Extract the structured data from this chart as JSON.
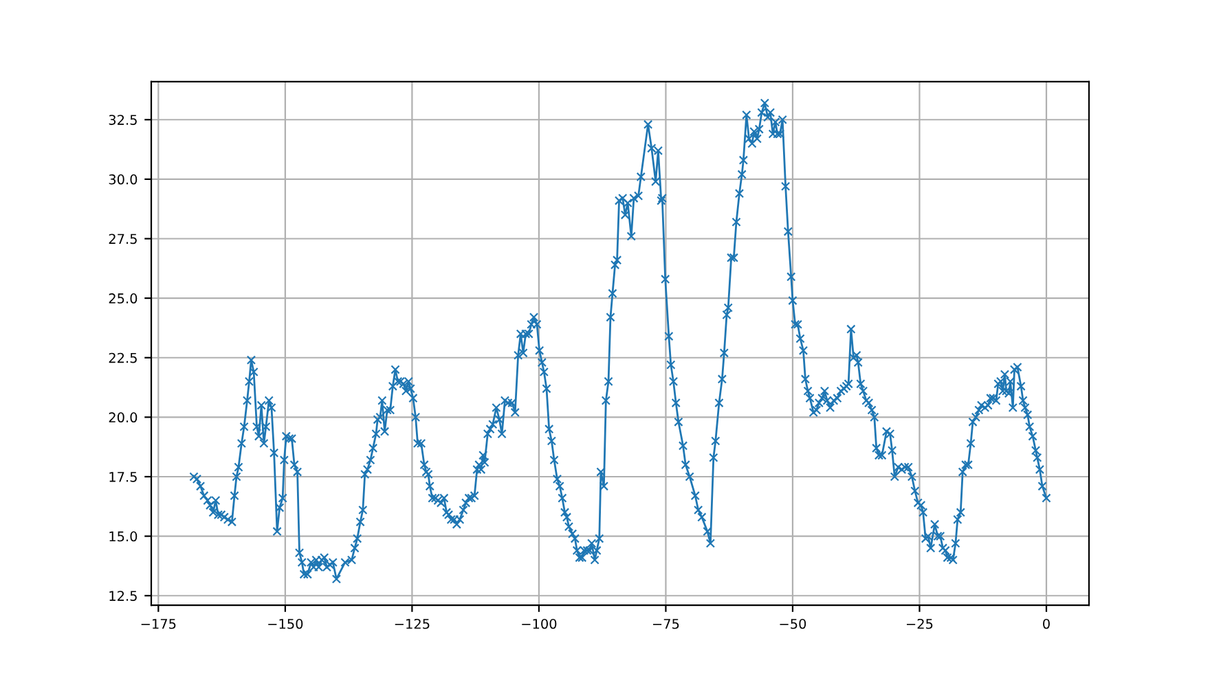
{
  "chart_data": {
    "type": "line",
    "xlim": [
      -176.4,
      8.4
    ],
    "ylim": [
      12.1,
      34.1
    ],
    "xticks": [
      {
        "value": -175,
        "label": "−175"
      },
      {
        "value": -150,
        "label": "−150"
      },
      {
        "value": -125,
        "label": "−125"
      },
      {
        "value": -100,
        "label": "−100"
      },
      {
        "value": -75,
        "label": "−75"
      },
      {
        "value": -50,
        "label": "−50"
      },
      {
        "value": -25,
        "label": "−25"
      },
      0
    ],
    "yticks": [
      12.5,
      {
        "value": 15,
        "label": "15.0"
      },
      17.5,
      {
        "value": 20,
        "label": "20.0"
      },
      22.5,
      {
        "value": 25,
        "label": "25.0"
      },
      27.5,
      {
        "value": 30,
        "label": "30.0"
      },
      32.5
    ],
    "grid": true,
    "marker": "cross",
    "line_style": "solid",
    "series": [
      {
        "color": "#1f77b4",
        "x": [
          -168.0,
          -167.4,
          -166.7,
          -166.0,
          -165.3,
          -164.8,
          -164.2,
          -163.7,
          -163.2,
          -162.6,
          -162.0,
          -161.3,
          -160.5,
          -160.0,
          -159.6,
          -159.2,
          -158.6,
          -158.1,
          -157.5,
          -157.1,
          -156.7,
          -156.2,
          -155.6,
          -155.2,
          -154.7,
          -154.2,
          -153.8,
          -153.2,
          -152.7,
          -152.2,
          -151.6,
          -151.1,
          -150.5,
          -150.2,
          -149.8,
          -149.2,
          -148.7,
          -148.2,
          -147.6,
          -147.2,
          -146.7,
          -146.3,
          -145.6,
          -144.9,
          -144.4,
          -143.9,
          -143.4,
          -142.8,
          -142.3,
          -141.8,
          -141.2,
          -140.6,
          -139.9,
          -138.2,
          -136.9,
          -136.3,
          -135.8,
          -135.2,
          -134.7,
          -134.3,
          -133.8,
          -133.2,
          -132.7,
          -132.1,
          -131.8,
          -131.3,
          -130.9,
          -130.4,
          -129.9,
          -129.3,
          -128.8,
          -128.3,
          -127.8,
          -127.3,
          -126.7,
          -126.2,
          -125.7,
          -125.3,
          -124.8,
          -124.3,
          -123.9,
          -123.2,
          -122.6,
          -122.2,
          -121.8,
          -121.5,
          -121.0,
          -120.4,
          -119.9,
          -119.3,
          -118.7,
          -118.2,
          -117.8,
          -117.3,
          -116.7,
          -116.2,
          -115.6,
          -114.9,
          -114.4,
          -113.8,
          -113.3,
          -112.7,
          -112.2,
          -111.8,
          -111.4,
          -111.0,
          -110.7,
          -110.1,
          -109.6,
          -109.1,
          -108.4,
          -107.8,
          -107.3,
          -106.7,
          -106.1,
          -105.3,
          -104.7,
          -104.1,
          -103.6,
          -103.1,
          -102.6,
          -102.0,
          -101.5,
          -101.0,
          -100.4,
          -99.9,
          -99.4,
          -99.0,
          -98.5,
          -98.0,
          -97.5,
          -97.0,
          -96.4,
          -95.9,
          -95.4,
          -94.9,
          -94.5,
          -94.1,
          -93.4,
          -92.9,
          -92.5,
          -92.0,
          -91.5,
          -91.1,
          -90.5,
          -90.0,
          -89.6,
          -89.0,
          -88.6,
          -88.1,
          -87.8,
          -87.2,
          -86.8,
          -86.3,
          -85.9,
          -85.5,
          -85.0,
          -84.6,
          -84.2,
          -83.5,
          -83.0,
          -82.5,
          -81.8,
          -81.3,
          -80.4,
          -79.9,
          -78.5,
          -77.8,
          -77.0,
          -76.5,
          -75.9,
          -75.7,
          -75.1,
          -74.4,
          -74.0,
          -73.5,
          -73.0,
          -72.5,
          -71.6,
          -71.1,
          -70.3,
          -69.2,
          -68.6,
          -67.9,
          -66.8,
          -66.2,
          -65.6,
          -65.2,
          -64.5,
          -63.9,
          -63.5,
          -63.0,
          -62.7,
          -62.1,
          -61.6,
          -61.1,
          -60.5,
          -60.0,
          -59.7,
          -59.1,
          -58.6,
          -58.0,
          -57.6,
          -57.0,
          -56.6,
          -56.1,
          -55.5,
          -54.9,
          -54.4,
          -53.9,
          -53.4,
          -53.0,
          -52.5,
          -52.0,
          -51.4,
          -50.9,
          -50.3,
          -50.0,
          -49.5,
          -49.0,
          -48.5,
          -47.9,
          -47.5,
          -47.0,
          -46.6,
          -45.9,
          -45.3,
          -44.8,
          -44.2,
          -43.7,
          -43.2,
          -42.6,
          -41.9,
          -41.2,
          -40.5,
          -39.9,
          -39.4,
          -39.0,
          -38.5,
          -38.0,
          -37.4,
          -37.1,
          -36.6,
          -36.1,
          -35.5,
          -35.0,
          -34.4,
          -33.9,
          -33.5,
          -33.0,
          -32.4,
          -31.5,
          -30.8,
          -30.4,
          -29.9,
          -29.2,
          -28.5,
          -27.9,
          -27.2,
          -26.5,
          -25.9,
          -25.3,
          -24.7,
          -24.3,
          -23.8,
          -23.3,
          -22.8,
          -22.0,
          -21.4,
          -20.9,
          -20.4,
          -19.9,
          -19.5,
          -18.8,
          -18.4,
          -17.9,
          -17.5,
          -16.9,
          -16.5,
          -15.9,
          -15.4,
          -14.9,
          -14.5,
          -13.9,
          -13.3,
          -12.8,
          -12.1,
          -11.5,
          -11.0,
          -10.5,
          -9.9,
          -9.5,
          -9.0,
          -8.6,
          -8.2,
          -7.9,
          -7.4,
          -7.1,
          -6.6,
          -6.3,
          -5.7,
          -5.0,
          -4.6,
          -4.2,
          -3.7,
          -3.3,
          -2.7,
          -2.1,
          -1.8,
          -1.3,
          -0.8,
          0.0
        ],
        "values": [
          17.5,
          17.4,
          17.1,
          16.7,
          16.5,
          16.3,
          16.0,
          16.5,
          15.9,
          15.9,
          15.8,
          15.7,
          15.6,
          16.7,
          17.5,
          17.9,
          18.9,
          19.6,
          20.7,
          21.5,
          22.4,
          21.9,
          19.6,
          19.2,
          20.5,
          18.9,
          19.6,
          20.7,
          20.4,
          18.5,
          15.2,
          16.2,
          16.6,
          18.2,
          19.2,
          19.1,
          19.1,
          18.0,
          17.7,
          14.3,
          13.9,
          13.4,
          13.4,
          13.9,
          13.7,
          14.0,
          13.7,
          14.0,
          14.1,
          13.7,
          13.8,
          13.9,
          13.2,
          13.9,
          14.0,
          14.5,
          14.9,
          15.6,
          16.1,
          17.6,
          17.8,
          18.2,
          18.7,
          19.3,
          19.9,
          20.0,
          20.7,
          19.4,
          20.3,
          20.3,
          21.3,
          22.0,
          21.5,
          21.5,
          21.4,
          21.1,
          21.5,
          21.2,
          20.8,
          20.0,
          18.9,
          18.9,
          18.0,
          17.7,
          17.6,
          17.1,
          16.6,
          16.6,
          16.5,
          16.4,
          16.6,
          16.0,
          15.9,
          15.7,
          15.7,
          15.5,
          15.7,
          16.1,
          16.4,
          16.6,
          16.6,
          16.7,
          17.8,
          18.0,
          17.8,
          18.4,
          18.1,
          19.3,
          19.5,
          19.7,
          20.4,
          19.9,
          19.3,
          20.7,
          20.6,
          20.6,
          20.2,
          22.6,
          23.5,
          22.7,
          23.5,
          23.5,
          23.9,
          24.2,
          23.9,
          22.8,
          22.3,
          21.9,
          21.2,
          19.5,
          19.0,
          18.2,
          17.4,
          17.1,
          16.6,
          16.0,
          15.8,
          15.4,
          15.1,
          14.9,
          14.4,
          14.1,
          14.1,
          14.4,
          14.4,
          14.4,
          14.7,
          14.0,
          14.4,
          14.9,
          17.7,
          17.1,
          20.7,
          21.5,
          24.2,
          25.2,
          26.4,
          26.6,
          29.1,
          29.2,
          28.5,
          29.0,
          27.6,
          29.2,
          29.3,
          30.1,
          32.3,
          31.3,
          29.9,
          31.2,
          29.1,
          29.2,
          25.8,
          23.4,
          22.2,
          21.5,
          20.6,
          19.8,
          18.8,
          18.0,
          17.5,
          16.7,
          16.1,
          15.8,
          15.2,
          14.7,
          18.3,
          19.0,
          20.6,
          21.6,
          22.7,
          24.3,
          24.6,
          26.7,
          26.7,
          28.2,
          29.4,
          30.2,
          30.8,
          32.7,
          31.7,
          31.5,
          32.0,
          31.7,
          32.1,
          32.8,
          33.2,
          32.6,
          32.8,
          31.9,
          32.4,
          31.9,
          31.9,
          32.5,
          29.7,
          27.8,
          25.9,
          24.9,
          23.9,
          23.9,
          23.3,
          22.8,
          21.6,
          21.1,
          20.8,
          20.2,
          20.3,
          20.6,
          20.8,
          21.1,
          20.7,
          20.4,
          20.7,
          20.8,
          21.1,
          21.2,
          21.3,
          21.4,
          23.7,
          22.5,
          22.6,
          22.3,
          21.4,
          21.1,
          20.7,
          20.6,
          20.3,
          20.0,
          18.7,
          18.4,
          18.4,
          19.4,
          19.3,
          18.6,
          17.5,
          17.9,
          17.8,
          17.9,
          17.9,
          17.5,
          16.9,
          16.4,
          16.3,
          16.0,
          14.9,
          15.0,
          14.5,
          15.5,
          15.0,
          15.0,
          14.5,
          14.4,
          14.1,
          14.1,
          14.0,
          14.7,
          15.7,
          16.0,
          17.7,
          18.0,
          18.0,
          18.9,
          19.8,
          20.0,
          20.3,
          20.5,
          20.4,
          20.5,
          20.8,
          20.8,
          20.7,
          21.4,
          21.5,
          21.1,
          21.8,
          21.1,
          21.0,
          21.5,
          20.4,
          22.0,
          22.1,
          21.3,
          20.7,
          20.4,
          20.1,
          19.6,
          19.2,
          18.6,
          18.3,
          17.8,
          17.1,
          16.6
        ]
      }
    ]
  }
}
